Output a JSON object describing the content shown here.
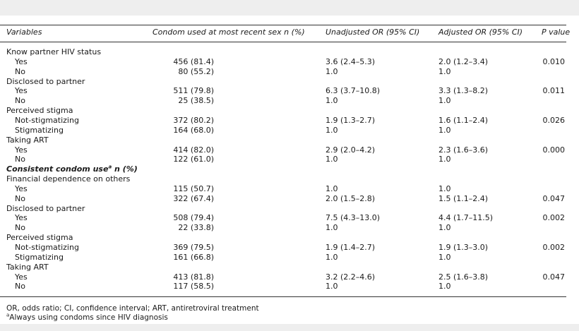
{
  "header": {
    "variables": "Variables",
    "condom": "Condom used at most recent sex n (%)",
    "unadj": "Unadjusted OR (95% CI)",
    "adj": "Adjusted OR (95% CI)",
    "p": "P value"
  },
  "rows": [
    {
      "type": "group",
      "label": "Know partner HIV status"
    },
    {
      "type": "data",
      "label": "Yes",
      "n": "456 (81.4)",
      "unadj": "3.6 (2.4–5.3)",
      "adj": "2.0 (1.2–3.4)",
      "p": "0.010"
    },
    {
      "type": "data",
      "label": "No",
      "n": "80 (55.2)",
      "unadj": "1.0",
      "adj": "1.0",
      "p": ""
    },
    {
      "type": "group",
      "label": "Disclosed to partner"
    },
    {
      "type": "data",
      "label": "Yes",
      "n": "511 (79.8)",
      "unadj": "6.3 (3.7–10.8)",
      "adj": "3.3 (1.3–8.2)",
      "p": "0.011"
    },
    {
      "type": "data",
      "label": "No",
      "n": "25 (38.5)",
      "unadj": "1.0",
      "adj": "1.0",
      "p": ""
    },
    {
      "type": "group",
      "label": "Perceived stigma"
    },
    {
      "type": "data",
      "label": "Not-stigmatizing",
      "n": "372 (80.2)",
      "unadj": "1.9 (1.3–2.7)",
      "adj": "1.6 (1.1–2.4)",
      "p": "0.026"
    },
    {
      "type": "data",
      "label": "Stigmatizing",
      "n": "164 (68.0)",
      "unadj": "1.0",
      "adj": "1.0",
      "p": ""
    },
    {
      "type": "group",
      "label": "Taking ART"
    },
    {
      "type": "data",
      "label": "Yes",
      "n": "414 (82.0)",
      "unadj": "2.9 (2.0–4.2)",
      "adj": "2.3 (1.6–3.6)",
      "p": "0.000"
    },
    {
      "type": "data",
      "label": "No",
      "n": "122 (61.0)",
      "unadj": "1.0",
      "adj": "1.0",
      "p": ""
    },
    {
      "type": "section",
      "label": "Consistent condom use",
      "sup": "a",
      "suffix": " n (%)"
    },
    {
      "type": "group",
      "label": "Financial dependence on others"
    },
    {
      "type": "data",
      "label": "Yes",
      "n": "115 (50.7)",
      "unadj": "1.0",
      "adj": "1.0",
      "p": ""
    },
    {
      "type": "data",
      "label": "No",
      "n": "322 (67.4)",
      "unadj": "2.0 (1.5–2.8)",
      "adj": "1.5 (1.1–2.4)",
      "p": "0.047"
    },
    {
      "type": "group",
      "label": "Disclosed to partner"
    },
    {
      "type": "data",
      "label": "Yes",
      "n": "508 (79.4)",
      "unadj": "7.5 (4.3–13.0)",
      "adj": "4.4 (1.7–11.5)",
      "p": "0.002"
    },
    {
      "type": "data",
      "label": "No",
      "n": "22 (33.8)",
      "unadj": "1.0",
      "adj": "1.0",
      "p": ""
    },
    {
      "type": "group",
      "label": "Perceived stigma"
    },
    {
      "type": "data",
      "label": "Not-stigmatizing",
      "n": "369 (79.5)",
      "unadj": "1.9 (1.4–2.7)",
      "adj": "1.9 (1.3–3.0)",
      "p": "0.002"
    },
    {
      "type": "data",
      "label": "Stigmatizing",
      "n": "161 (66.8)",
      "unadj": "1.0",
      "adj": "1.0",
      "p": ""
    },
    {
      "type": "group",
      "label": "Taking ART"
    },
    {
      "type": "data",
      "label": "Yes",
      "n": "413 (81.8)",
      "unadj": "3.2 (2.2–4.6)",
      "adj": "2.5 (1.6–3.8)",
      "p": "0.047"
    },
    {
      "type": "data",
      "label": "No",
      "n": "117 (58.5)",
      "unadj": "1.0",
      "adj": "1.0",
      "p": ""
    }
  ],
  "footnotes": {
    "abbrev": "OR, odds ratio; CI, confidence interval; ART, antiretroviral treatment",
    "a_mark": "a",
    "a_text": "Always using condoms since HIV diagnosis"
  }
}
